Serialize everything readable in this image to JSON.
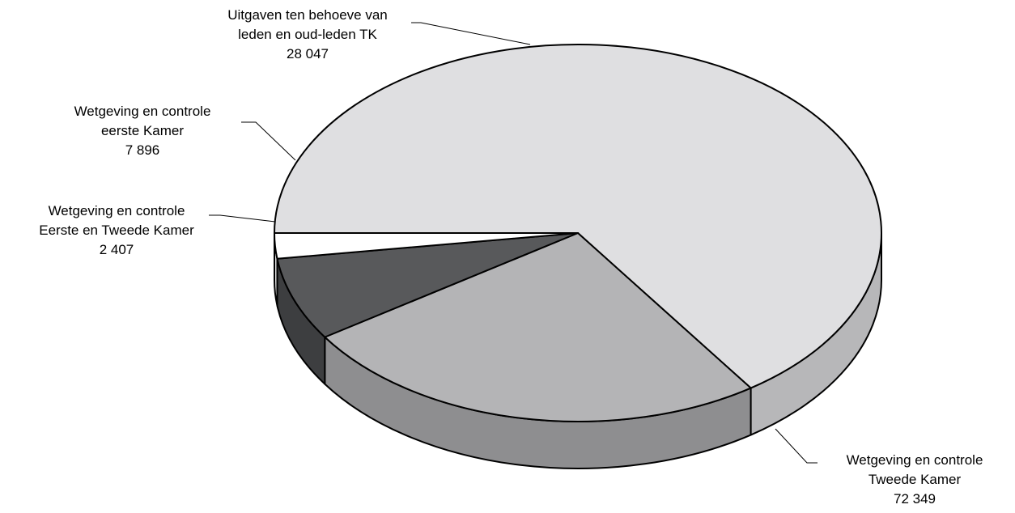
{
  "chart_data": {
    "type": "pie",
    "title": "",
    "slices": [
      {
        "label_lines": [
          "Wetgeving en controle",
          "Tweede Kamer"
        ],
        "value_label": "72 349",
        "value": 72349,
        "color": "#dfdfe1",
        "side_color": "#b7b7b9"
      },
      {
        "label_lines": [
          "Uitgaven ten behoeve van",
          "leden en oud-leden TK"
        ],
        "value_label": "28 047",
        "value": 28047,
        "color": "#b4b4b6",
        "side_color": "#8e8e90"
      },
      {
        "label_lines": [
          "Wetgeving en controle",
          "eerste Kamer"
        ],
        "value_label": "7 896",
        "value": 7896,
        "color": "#58595b",
        "side_color": "#3d3e40"
      },
      {
        "label_lines": [
          "Wetgeving en controle",
          "Eerste en Tweede Kamer"
        ],
        "value_label": "2 407",
        "value": 2407,
        "color": "#ffffff",
        "side_color": "#e0e0e0"
      }
    ]
  }
}
